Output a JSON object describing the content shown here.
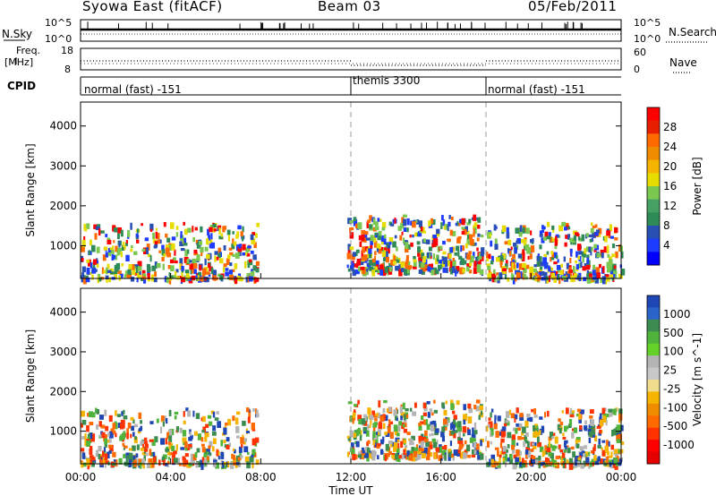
{
  "header": {
    "station": "Syowa East (fitACF)",
    "beam": "Beam 03",
    "date": "05/Feb/2011"
  },
  "strips": {
    "nsky_label": "N.Sky",
    "nsky_top": "10^5",
    "nsky_bottom": "10^0",
    "nsearch_label": "N.Search",
    "nsearch_top": "10^5",
    "nsearch_bottom": "10^0",
    "freq_label": "Freq.",
    "freq_unit": "[MHz]",
    "freq_top": "18",
    "freq_bottom": "8",
    "nave_label": "Nave",
    "nave_top": "60",
    "nave_bottom": "0",
    "cpid_label": "CPID"
  },
  "modes": [
    {
      "label": "normal (fast) -151",
      "start": 0
    },
    {
      "label": "themis 3300",
      "start": 12
    },
    {
      "label": "normal (fast) -151",
      "start": 18
    }
  ],
  "colorbar_power": {
    "label": "Power [dB]",
    "ticks": [
      "28",
      "24",
      "20",
      "16",
      "12",
      "8",
      "4"
    ],
    "colors": [
      "#ff0000",
      "#e81e00",
      "#ff6a00",
      "#f08c00",
      "#f5b400",
      "#e6dc00",
      "#7ac850",
      "#46a064",
      "#2e8b57",
      "#2850b4",
      "#1e3cff",
      "#0000ff"
    ]
  },
  "colorbar_velocity": {
    "label": "Velocity [m s^-1]",
    "ticks": [
      "1000",
      "500",
      "100",
      "25",
      "-25",
      "-100",
      "-500",
      "-1000"
    ],
    "colors": [
      "#1e46b4",
      "#2a64c8",
      "#3c8c50",
      "#50b43c",
      "#64d228",
      "#b4b4b4",
      "#c8c8c8",
      "#f0dc8c",
      "#f5b400",
      "#f08c00",
      "#ff6a00",
      "#ff3200",
      "#ff0000",
      "#e60000"
    ]
  },
  "chart_data": {
    "type": "heatmap",
    "panels": [
      "power",
      "velocity"
    ],
    "xlabel": "Time UT",
    "x_ticks": [
      "00:00",
      "04:00",
      "08:00",
      "12:00",
      "16:00",
      "20:00",
      "00:00"
    ],
    "xlim_hours": [
      0,
      24
    ],
    "ylabel": "Slant Range [km]",
    "y_ticks": [
      1000,
      2000,
      3000,
      4000
    ],
    "ylim": [
      180,
      4600
    ],
    "mode_boundaries_hours": [
      12,
      18
    ],
    "scatter_regions": [
      {
        "t0": 0.0,
        "t1": 7.8,
        "r0": 200,
        "r1": 1600
      },
      {
        "t0": 11.8,
        "t1": 17.8,
        "r0": 400,
        "r1": 1800
      },
      {
        "t0": 18.0,
        "t1": 24.0,
        "r0": 200,
        "r1": 1600
      }
    ]
  }
}
